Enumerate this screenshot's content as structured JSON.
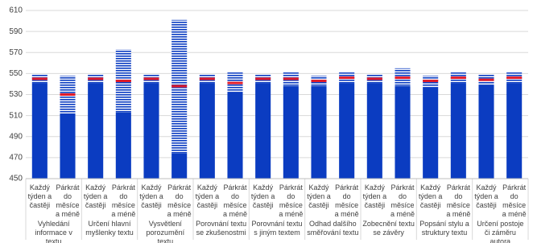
{
  "chart_data": {
    "type": "bar",
    "groups": [
      "Vyhledání informace v textu",
      "Určení hlavní myšlenky textu",
      "Vysvětlení porozumění textu",
      "Porovnání textu se zkušenostmi",
      "Porovnání textu s jiným textem",
      "Odhad dalšího směřování textu",
      "Zobecnění textu se závěry",
      "Popsání stylu a struktury textu",
      "Určení postoje či záměru autora"
    ],
    "subcategories": [
      "Každý týden a častěji",
      "Párkrát do měsíce a méně"
    ],
    "low": [
      541,
      512,
      541,
      513,
      541,
      474,
      541,
      532,
      541,
      538,
      538,
      541,
      541,
      538,
      537,
      541,
      539,
      541
    ],
    "mean": [
      545,
      530,
      545,
      543,
      545,
      538,
      545,
      541,
      545,
      545,
      543,
      546,
      545,
      546,
      543,
      546,
      544,
      546
    ],
    "high": [
      549,
      548,
      549,
      573,
      549,
      601,
      549,
      551,
      549,
      551,
      548,
      551,
      549,
      555,
      548,
      551,
      549,
      551
    ],
    "color": "#0b3cc1",
    "mean_color": "#e01b2b",
    "ylim": [
      450,
      610
    ],
    "yticks": [
      450,
      470,
      490,
      510,
      530,
      550,
      570,
      590,
      610
    ],
    "grid": true
  }
}
